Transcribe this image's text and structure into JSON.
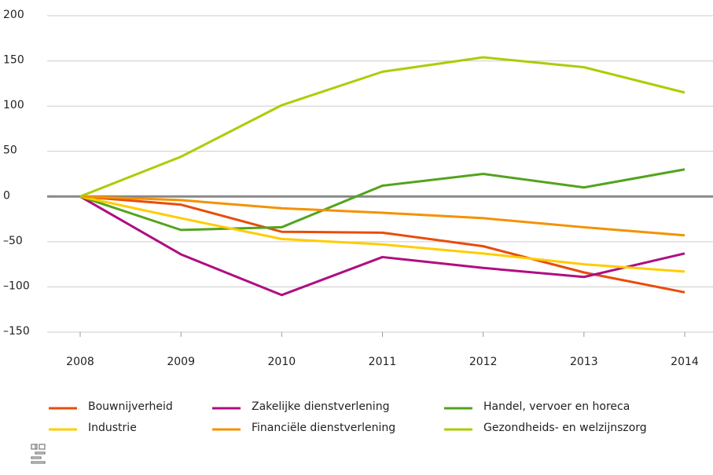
{
  "chart_data": {
    "type": "line",
    "categories": [
      "2008",
      "2009",
      "2010",
      "2011",
      "2012",
      "2013",
      "2014"
    ],
    "series": [
      {
        "name": "Bouwnijverheid",
        "color": "#e94c0a",
        "values": [
          0,
          -9,
          -39,
          -40,
          -55,
          -84,
          -106
        ]
      },
      {
        "name": "Zakelijke dienstverlening",
        "color": "#af0e80",
        "values": [
          0,
          -64,
          -109,
          -67,
          -79,
          -89,
          -63
        ]
      },
      {
        "name": "Handel, vervoer en horeca",
        "color": "#53a31d",
        "values": [
          0,
          -37,
          -34,
          12,
          25,
          10,
          30
        ]
      },
      {
        "name": "Industrie",
        "color": "#ffcc00",
        "values": [
          0,
          -24,
          -47,
          -53,
          -63,
          -75,
          -83
        ]
      },
      {
        "name": "Financiële dienstverlening",
        "color": "#f39200",
        "values": [
          0,
          -4,
          -13,
          -18,
          -24,
          -34,
          -43
        ]
      },
      {
        "name": "Gezondheids- en welzijnszorg",
        "color": "#afcb05",
        "values": [
          0,
          44,
          101,
          138,
          154,
          143,
          115
        ]
      }
    ],
    "ylim": [
      -150,
      200
    ],
    "yticks": [
      {
        "value": -150,
        "label": "–150"
      },
      {
        "value": -100,
        "label": "–100"
      },
      {
        "value": -50,
        "label": "–50"
      },
      0,
      50,
      100,
      150,
      200
    ],
    "grid": true
  }
}
